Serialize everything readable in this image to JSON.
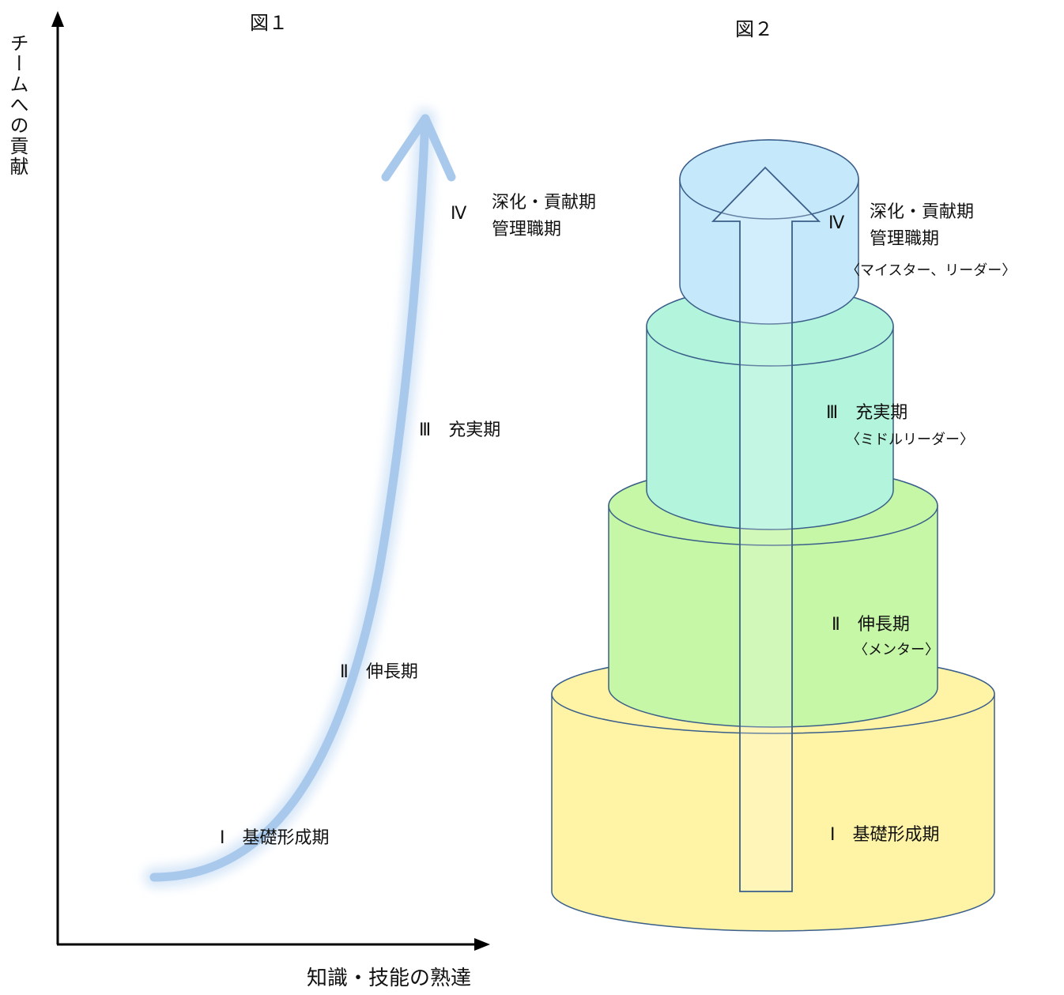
{
  "figure1": {
    "title": "図１",
    "y_axis_label": "チームへの貢献",
    "x_axis_label": "知識・技能の熟達",
    "stages": [
      {
        "numeral": "Ⅰ",
        "name": "基礎形成期"
      },
      {
        "numeral": "Ⅱ",
        "name": "伸長期"
      },
      {
        "numeral": "Ⅲ",
        "name": "充実期"
      },
      {
        "numeral": "Ⅳ",
        "name": "深化・貢献期",
        "name2": "管理職期"
      }
    ]
  },
  "figure2": {
    "title": "図２",
    "tiers": [
      {
        "numeral": "Ⅰ",
        "name": "基礎形成期",
        "color": "#fff3a6"
      },
      {
        "numeral": "Ⅱ",
        "name": "伸長期",
        "role": "〈メンター〉",
        "color": "#c6f7a6"
      },
      {
        "numeral": "Ⅲ",
        "name": "充実期",
        "role": "〈ミドルリーダー〉",
        "color": "#b3f5dc"
      },
      {
        "numeral": "Ⅳ",
        "name": "深化・貢献期",
        "name2": "管理職期",
        "role": "〈マイスター、リーダー〉",
        "color": "#c6e8fb"
      }
    ]
  },
  "colors": {
    "curve": "#a9c9ec",
    "outline": "#3a5f8a",
    "axis": "#000000"
  }
}
